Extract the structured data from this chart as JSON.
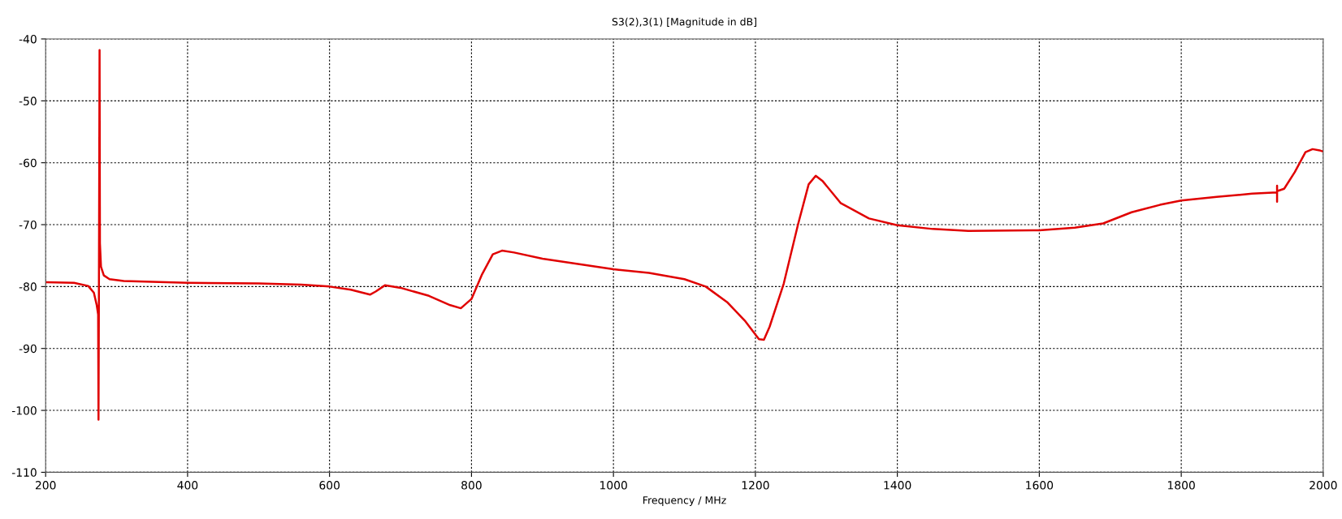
{
  "chart_data": {
    "type": "line",
    "title": "S3(2),3(1) [Magnitude in dB]",
    "xlabel": "Frequency / MHz",
    "xlim": [
      200,
      2000
    ],
    "xticks": [
      200,
      400,
      600,
      800,
      1000,
      1200,
      1400,
      1600,
      1800,
      2000
    ],
    "ylim": [
      -110,
      -40
    ],
    "yticks": [
      -110,
      -100,
      -90,
      -80,
      -70,
      -60,
      -50,
      -40
    ],
    "grid": true,
    "marker": "none",
    "line_style": "solid",
    "series": [
      {
        "color": "#e00000",
        "x": [
          200,
          240,
          260,
          268,
          272,
          274,
          274.5,
          275,
          276,
          276.5,
          278,
          282,
          290,
          310,
          400,
          500,
          560,
          600,
          630,
          657,
          665,
          678,
          700,
          740,
          770,
          785,
          800,
          815,
          830,
          843,
          860,
          900,
          1000,
          1050,
          1100,
          1130,
          1160,
          1185,
          1205,
          1212,
          1220,
          1240,
          1260,
          1275,
          1285,
          1295,
          1320,
          1360,
          1400,
          1450,
          1500,
          1600,
          1650,
          1690,
          1730,
          1770,
          1800,
          1850,
          1900,
          1935,
          1935,
          1935,
          1935,
          1945,
          1960,
          1975,
          1985,
          1995,
          2000
        ],
        "values": [
          -79.3,
          -79.4,
          -79.9,
          -81,
          -83,
          -84.5,
          -101.5,
          -84,
          -41.8,
          -73,
          -76.8,
          -78.2,
          -78.8,
          -79.1,
          -79.4,
          -79.5,
          -79.7,
          -80,
          -80.5,
          -81.3,
          -80.8,
          -79.8,
          -80.2,
          -81.5,
          -83,
          -83.5,
          -82,
          -78,
          -74.8,
          -74.2,
          -74.5,
          -75.5,
          -77.2,
          -77.8,
          -78.8,
          -80,
          -82.5,
          -85.5,
          -88.5,
          -88.6,
          -86.5,
          -79.5,
          -70,
          -63.5,
          -62.1,
          -63,
          -66.5,
          -69,
          -70.1,
          -70.7,
          -71,
          -70.9,
          -70.5,
          -69.8,
          -68,
          -66.8,
          -66.1,
          -65.5,
          -65,
          -64.8,
          -63.7,
          -66.3,
          -64.6,
          -64.2,
          -61.5,
          -58.3,
          -57.8,
          -58,
          -58.2
        ]
      }
    ]
  }
}
